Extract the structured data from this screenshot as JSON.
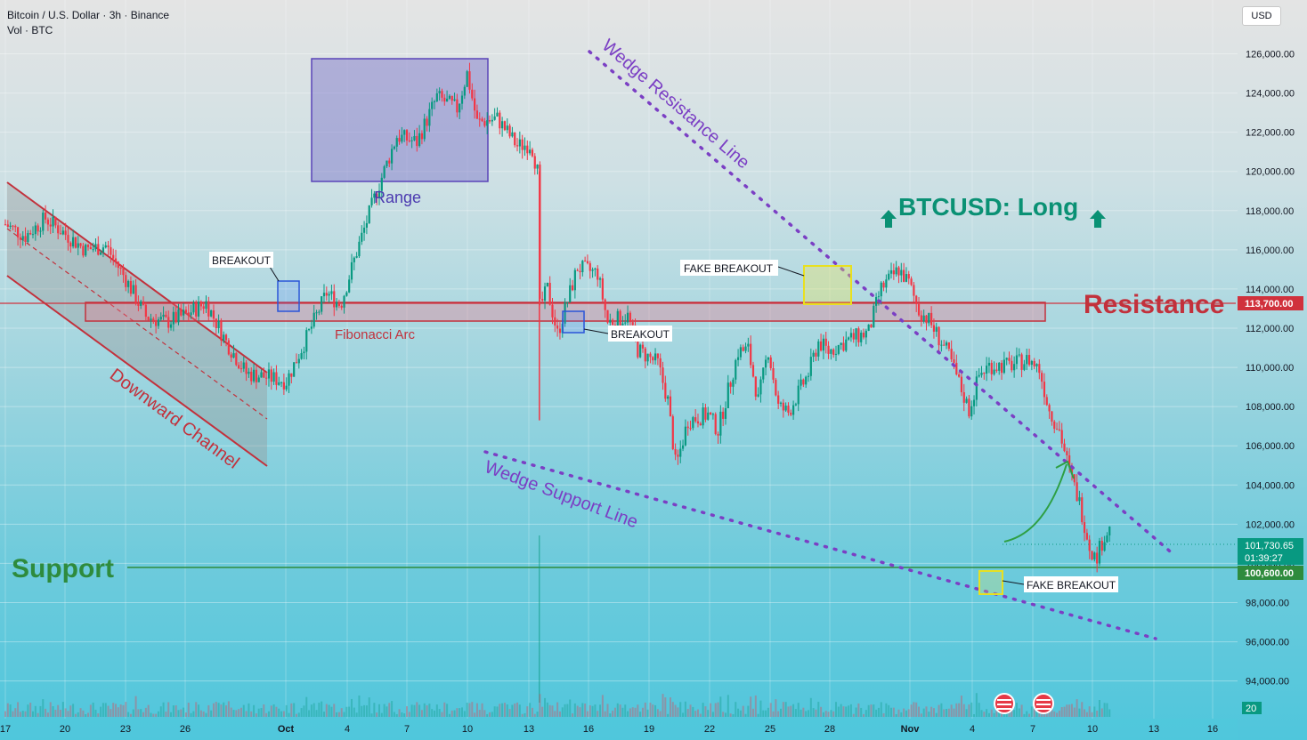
{
  "header": {
    "symbol": "Bitcoin / U.S. Dollar · 3h · Binance",
    "volume_label": "Vol · BTC"
  },
  "currency": "USD",
  "volume_badge": "20",
  "colors": {
    "up": "#089981",
    "down": "#f23645",
    "channel": "#c2313c",
    "resistance": "#c2313c",
    "support": "#2e8b3d",
    "wedge": "#7b3fc4",
    "range_box": "#6a4fc0",
    "long": "#0a9174"
  },
  "chart_data": {
    "type": "candlestick",
    "title": "",
    "x_axis": {
      "ticks": [
        "17",
        "20",
        "23",
        "26",
        "Oct",
        "4",
        "7",
        "10",
        "13",
        "16",
        "19",
        "22",
        "25",
        "28",
        "Nov",
        "4",
        "7",
        "10",
        "13",
        "16"
      ]
    },
    "y_axis": {
      "range": [
        93500,
        127800
      ],
      "ticks": [
        "126,000.00",
        "124,000.00",
        "122,000.00",
        "120,000.00",
        "118,000.00",
        "116,000.00",
        "114,000.00",
        "112,000.00",
        "110,000.00",
        "108,000.00",
        "106,000.00",
        "104,000.00",
        "102,000.00",
        "100,000.00",
        "98,000.00",
        "96,000.00",
        "94,000.00"
      ]
    },
    "price_labels": {
      "resistance": "113,700.00",
      "current_price": "101,730.65",
      "countdown": "01:39:27",
      "support": "100,600.00"
    },
    "close_path": [
      {
        "t": 0,
        "p": 117300
      },
      {
        "t": 1,
        "p": 116700
      },
      {
        "t": 2,
        "p": 117600
      },
      {
        "t": 3,
        "p": 116800
      },
      {
        "t": 4,
        "p": 116000
      },
      {
        "t": 5,
        "p": 116200
      },
      {
        "t": 6,
        "p": 114500
      },
      {
        "t": 7,
        "p": 112600
      },
      {
        "t": 8,
        "p": 112300
      },
      {
        "t": 9,
        "p": 112700
      },
      {
        "t": 10,
        "p": 113300
      },
      {
        "t": 11,
        "p": 111300
      },
      {
        "t": 12,
        "p": 109700
      },
      {
        "t": 13,
        "p": 109500
      },
      {
        "t": 14,
        "p": 109300
      },
      {
        "t": 15,
        "p": 111500
      },
      {
        "t": 16,
        "p": 113800
      },
      {
        "t": 16.7,
        "p": 113200
      },
      {
        "t": 17.5,
        "p": 115900
      },
      {
        "t": 18.5,
        "p": 119000
      },
      {
        "t": 19.5,
        "p": 121800
      },
      {
        "t": 20.5,
        "p": 121500
      },
      {
        "t": 21.5,
        "p": 123800
      },
      {
        "t": 22.5,
        "p": 123200
      },
      {
        "t": 23,
        "p": 125000
      },
      {
        "t": 23.5,
        "p": 122500
      },
      {
        "t": 24.5,
        "p": 122700
      },
      {
        "t": 25.5,
        "p": 121300
      },
      {
        "t": 26.2,
        "p": 121400
      },
      {
        "t": 26.5,
        "p": 120000
      },
      {
        "t": 26.6,
        "p": 113000
      },
      {
        "t": 27,
        "p": 114000
      },
      {
        "t": 27.5,
        "p": 111700
      },
      {
        "t": 28,
        "p": 113400
      },
      {
        "t": 28.5,
        "p": 115100
      },
      {
        "t": 29.5,
        "p": 114800
      },
      {
        "t": 30,
        "p": 112300
      },
      {
        "t": 31,
        "p": 112600
      },
      {
        "t": 31.5,
        "p": 110900
      },
      {
        "t": 32.5,
        "p": 110200
      },
      {
        "t": 33,
        "p": 108300
      },
      {
        "t": 33.4,
        "p": 104900
      },
      {
        "t": 34,
        "p": 107300
      },
      {
        "t": 35,
        "p": 107600
      },
      {
        "t": 35.5,
        "p": 106800
      },
      {
        "t": 36,
        "p": 108800
      },
      {
        "t": 36.5,
        "p": 110800
      },
      {
        "t": 37,
        "p": 110900
      },
      {
        "t": 37.5,
        "p": 108300
      },
      {
        "t": 38,
        "p": 110900
      },
      {
        "t": 38.5,
        "p": 108000
      },
      {
        "t": 39,
        "p": 107700
      },
      {
        "t": 40,
        "p": 109700
      },
      {
        "t": 40.5,
        "p": 111300
      },
      {
        "t": 41,
        "p": 110800
      },
      {
        "t": 42,
        "p": 111400
      },
      {
        "t": 43,
        "p": 111800
      },
      {
        "t": 43.6,
        "p": 114000
      },
      {
        "t": 44.5,
        "p": 115000
      },
      {
        "t": 45,
        "p": 114300
      },
      {
        "t": 45.5,
        "p": 112900
      },
      {
        "t": 46,
        "p": 112400
      },
      {
        "t": 47,
        "p": 110600
      },
      {
        "t": 48,
        "p": 107800
      },
      {
        "t": 48.5,
        "p": 109600
      },
      {
        "t": 49,
        "p": 110100
      },
      {
        "t": 50,
        "p": 110100
      },
      {
        "t": 51,
        "p": 110400
      },
      {
        "t": 51.5,
        "p": 109900
      },
      {
        "t": 52,
        "p": 107800
      },
      {
        "t": 52.5,
        "p": 106800
      },
      {
        "t": 53,
        "p": 104700
      },
      {
        "t": 53.5,
        "p": 103100
      },
      {
        "t": 54,
        "p": 100900
      },
      {
        "t": 54.3,
        "p": 100200
      },
      {
        "t": 54.7,
        "p": 101300
      },
      {
        "t": 55,
        "p": 101730
      }
    ]
  },
  "annotations": {
    "range_label": "Range",
    "breakout_1": "BREAKOUT",
    "breakout_2": "BREAKOUT",
    "fake_breakout_top": "FAKE BREAKOUT",
    "fake_breakout_bottom": "FAKE BREAKOUT",
    "fibonacci": "Fibonacci Arc",
    "downward_channel": "Downward Channel",
    "wedge_resistance": "Wedge Resistance Line",
    "wedge_support": "Wedge Support Line",
    "resistance": "Resistance",
    "support": "Support",
    "long_title": "BTCUSD: Long"
  }
}
